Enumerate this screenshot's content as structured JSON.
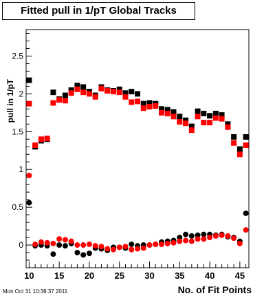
{
  "timestamp": "Mon Oct 31 10:38:37 2011",
  "chart_data": {
    "type": "scatter",
    "title": "Fitted pull in 1/pT  Global Tracks",
    "xlabel": "No. of Fit Points",
    "ylabel": "pull in 1/pT",
    "xlim": [
      9.5,
      46.5
    ],
    "ylim": [
      -0.3,
      2.85
    ],
    "xticks": [
      10,
      15,
      20,
      25,
      30,
      35,
      40,
      45
    ],
    "yticks": [
      0,
      0.5,
      1,
      1.5,
      2,
      2.5
    ],
    "ytick_labels": [
      "0",
      "0.5",
      "1",
      "1.5",
      "2",
      "2.5"
    ],
    "grid": false,
    "colors": {
      "black_series": "#000000",
      "red_series": "#ff0000"
    },
    "series": [
      {
        "marker": "square",
        "color": "#000000",
        "x": [
          10,
          11,
          12,
          13,
          14,
          15,
          16,
          17,
          18,
          19,
          20,
          21,
          22,
          23,
          24,
          25,
          26,
          27,
          28,
          29,
          30,
          31,
          32,
          33,
          34,
          35,
          36,
          37,
          38,
          39,
          40,
          41,
          42,
          43,
          44,
          45,
          46
        ],
        "y": [
          2.18,
          1.3,
          1.38,
          1.4,
          2.02,
          1.93,
          1.98,
          2.05,
          2.11,
          2.09,
          2.03,
          1.98,
          2.09,
          2.05,
          2.04,
          2.06,
          2.01,
          2.03,
          2.0,
          1.87,
          1.88,
          1.87,
          1.8,
          1.79,
          1.76,
          1.7,
          1.65,
          1.57,
          1.77,
          1.74,
          1.71,
          1.74,
          1.72,
          1.6,
          1.43,
          1.27,
          1.43
        ]
      },
      {
        "marker": "square",
        "color": "#ff0000",
        "x": [
          10,
          11,
          12,
          13,
          14,
          15,
          16,
          17,
          18,
          19,
          20,
          21,
          22,
          23,
          24,
          25,
          26,
          27,
          28,
          29,
          30,
          31,
          32,
          33,
          34,
          35,
          36,
          37,
          38,
          39,
          40,
          41,
          42,
          43,
          44,
          45,
          46
        ],
        "y": [
          1.87,
          1.32,
          1.4,
          1.41,
          1.88,
          1.92,
          1.91,
          2.01,
          2.06,
          2.02,
          2.0,
          1.96,
          2.07,
          2.04,
          2.03,
          2.02,
          1.96,
          1.89,
          1.9,
          1.81,
          1.83,
          1.84,
          1.75,
          1.74,
          1.7,
          1.63,
          1.61,
          1.52,
          1.7,
          1.62,
          1.62,
          1.68,
          1.67,
          1.56,
          1.35,
          1.2,
          1.32
        ]
      },
      {
        "marker": "circle",
        "color": "#000000",
        "x": [
          10,
          11,
          12,
          13,
          14,
          15,
          16,
          17,
          18,
          19,
          20,
          21,
          22,
          23,
          24,
          25,
          26,
          27,
          28,
          29,
          30,
          31,
          32,
          33,
          34,
          35,
          36,
          37,
          38,
          39,
          40,
          41,
          42,
          43,
          44,
          45,
          46
        ],
        "y": [
          0.56,
          -0.01,
          0.0,
          -0.01,
          -0.12,
          0.0,
          -0.01,
          0.02,
          -0.1,
          -0.13,
          -0.11,
          -0.04,
          -0.05,
          -0.07,
          -0.03,
          -0.03,
          -0.04,
          0.01,
          -0.01,
          0.0,
          0.0,
          0.01,
          0.04,
          0.05,
          0.06,
          0.1,
          0.14,
          0.12,
          0.13,
          0.14,
          0.14,
          0.13,
          0.14,
          0.11,
          0.1,
          0.05,
          0.42
        ]
      },
      {
        "marker": "circle",
        "color": "#ff0000",
        "x": [
          10,
          11,
          12,
          13,
          14,
          15,
          16,
          17,
          18,
          19,
          20,
          21,
          22,
          23,
          24,
          25,
          26,
          27,
          28,
          29,
          30,
          31,
          32,
          33,
          34,
          35,
          36,
          37,
          38,
          39,
          40,
          41,
          42,
          43,
          44,
          45,
          46
        ],
        "y": [
          0.92,
          0.01,
          0.04,
          0.03,
          0.02,
          0.08,
          0.07,
          0.05,
          0.0,
          0.0,
          0.01,
          -0.01,
          -0.02,
          -0.05,
          -0.06,
          -0.03,
          -0.02,
          -0.06,
          -0.05,
          -0.04,
          0.0,
          0.01,
          0.01,
          0.02,
          0.03,
          0.05,
          0.06,
          0.05,
          0.08,
          0.08,
          0.1,
          0.12,
          0.13,
          0.12,
          0.09,
          0.02,
          0.2
        ]
      }
    ]
  }
}
